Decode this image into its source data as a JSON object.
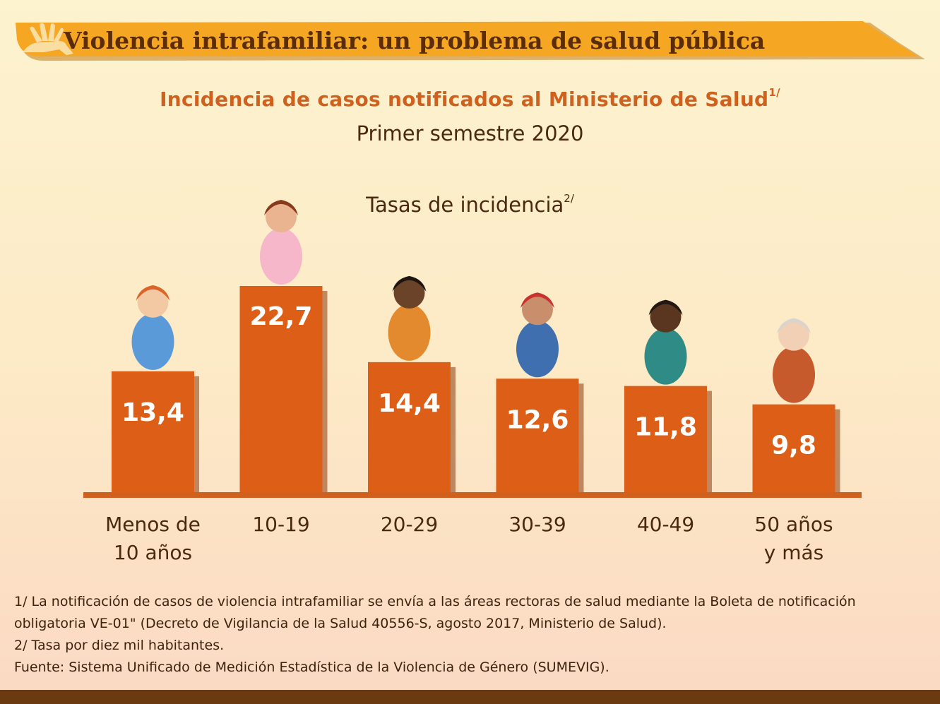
{
  "banner": {
    "title": "Violencia intrafamiliar: un problema de salud pública"
  },
  "chart_data": {
    "type": "bar",
    "title": "Incidencia de casos notificados al Ministerio de Salud",
    "title_note": "1/",
    "subtitle": "Primer semestre 2020",
    "ylabel": "Tasas de incidencia",
    "ylabel_note": "2/",
    "categories": [
      [
        "Menos de",
        "10 años"
      ],
      [
        "10-19"
      ],
      [
        "20-29"
      ],
      [
        "30-39"
      ],
      [
        "40-49"
      ],
      [
        "50 años",
        "y más"
      ]
    ],
    "values": [
      13.4,
      22.7,
      14.4,
      12.6,
      11.8,
      9.8
    ],
    "value_labels": [
      "13,4",
      "22,7",
      "14,4",
      "12,6",
      "11,8",
      "9,8"
    ],
    "ylim": [
      0,
      25
    ],
    "grid": false,
    "legend": "none",
    "colors": {
      "bar": "#dd5f17",
      "bar_shadow": "#8c3a0b",
      "baseline": "#d0601d",
      "label": "#ffffff",
      "category": "#4a2a0e"
    }
  },
  "footnotes": {
    "note1_line1": "1/ La notificación de casos de violencia intrafamiliar se envía a las áreas rectoras de salud mediante la Boleta de notificación",
    "note1_line2": "obligatoria VE-01\" (Decreto de Vigilancia de la Salud 40556-S, agosto 2017, Ministerio de Salud).",
    "note2": "2/ Tasa por diez mil habitantes.",
    "source": "Fuente: Sistema Unificado de Medición Estadística de la Violencia de Género (SUMEVIG)."
  },
  "colors": {
    "banner": "#f5a623",
    "banner_shadow": "#c47a14",
    "accent": "#d0601d",
    "bottom_bar": "#6b3a10"
  },
  "icons": [
    "hand-icon",
    "figure-illustration"
  ]
}
